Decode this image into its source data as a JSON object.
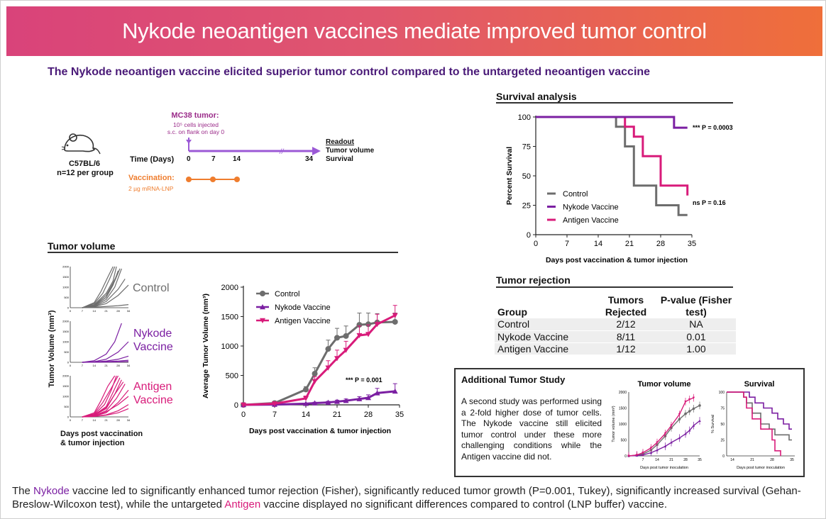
{
  "banner": {
    "title": "Nykode neoantigen vaccines mediate improved tumor control"
  },
  "subtitle": "The Nykode neoantigen vaccine elicited superior tumor control compared to the untargeted neoantigen vaccine",
  "colors": {
    "control": "#6d6d6d",
    "nykode": "#7b1fa2",
    "antigen": "#d81b7a",
    "timeline": "#9b59d6",
    "vaccination": "#ef7d2e"
  },
  "schedule": {
    "mouse_strain": "C57BL/6",
    "group_size": "n=12 per group",
    "tumor_label": "MC38 tumor:",
    "tumor_detail_1": "10⁵ cells injected",
    "tumor_detail_2": "s.c. on flank on day 0",
    "time_label": "Time (Days)",
    "days": [
      "0",
      "7",
      "14",
      "34"
    ],
    "readout_title": "Readout",
    "readout_1": "Tumor volume",
    "readout_2": "Survival",
    "vaccination_label": "Vaccination:",
    "vaccination_detail": "2 µg mRNA-LNP",
    "mouse_icon": "mouse-icon"
  },
  "tumor_volume_section": {
    "heading": "Tumor volume",
    "ylabel_individual": "Tumor Volume (mm³)",
    "xlabel_individual_1": "Days post vaccination",
    "xlabel_individual_2": "& tumor injection",
    "small_y_ticks": [
      "2000",
      "1500",
      "1000",
      "500",
      "0"
    ],
    "small_x_ticks": [
      "0",
      "7",
      "14",
      "21",
      "28",
      "34"
    ],
    "panel_labels": [
      [
        "Control"
      ],
      [
        "Nykode",
        "Vaccine"
      ],
      [
        "Antigen",
        "Vaccine"
      ]
    ]
  },
  "survival_section": {
    "heading": "Survival analysis"
  },
  "rejection": {
    "heading": "Tumor rejection",
    "headers": [
      "Group",
      "Tumors Rejected",
      "P-value (Fisher test)"
    ],
    "header_lines": {
      "group": "Group",
      "tumors": [
        "Tumors",
        "Rejected"
      ],
      "pvalue": [
        "P-value (Fisher",
        "test)"
      ]
    },
    "rows": [
      {
        "group": "Control",
        "rejected": "2/12",
        "p": "NA"
      },
      {
        "group": "Nykode Vaccine",
        "rejected": "8/11",
        "p": "0.01"
      },
      {
        "group": "Antigen Vaccine",
        "rejected": "1/12",
        "p": "1.00"
      }
    ]
  },
  "additional": {
    "title": "Additional Tumor Study",
    "text": "A second study was performed using a 2-fold higher dose of tumor cells. The Nykode vaccine still elicited tumor control under these more challenging conditions while the Antigen vaccine did not."
  },
  "footer": {
    "part1": "The ",
    "nykode": "Nykode",
    "part2": " vaccine led to significantly enhanced tumor rejection (Fisher), significantly reduced tumor growth (P=0.001, Tukey), significantly increased survival (Gehan-Breslow-Wilcoxon test), while the untargeted ",
    "antigen": "Antigen",
    "part3": " vaccine displayed no significant differences compared to control (LNP buffer) vaccine."
  },
  "chart_data": [
    {
      "id": "survival",
      "type": "line",
      "step": true,
      "title": "",
      "xlabel": "Days post vaccination & tumor injection",
      "ylabel": "Percent Survival",
      "xlim": [
        0,
        35
      ],
      "ylim": [
        0,
        100
      ],
      "x_ticks": [
        0,
        7,
        14,
        21,
        28,
        35
      ],
      "y_ticks": [
        0,
        25,
        50,
        75,
        100
      ],
      "legend_position": "bottom-left",
      "series": [
        {
          "name": "Control",
          "x": [
            0,
            18,
            20,
            22,
            27,
            32,
            34
          ],
          "y": [
            100,
            91.7,
            75,
            41.7,
            25,
            16.7,
            16.7
          ]
        },
        {
          "name": "Nykode Vaccine",
          "x": [
            0,
            31,
            34
          ],
          "y": [
            100,
            90.9,
            90.9
          ]
        },
        {
          "name": "Antigen Vaccine",
          "x": [
            0,
            20,
            22,
            24,
            28,
            34
          ],
          "y": [
            100,
            91.7,
            83.3,
            66.7,
            41.7,
            33.3
          ]
        }
      ],
      "annotations": [
        {
          "text": "*** P = 0.0003",
          "x": 35,
          "y": 90.9
        },
        {
          "text": "ns P = 0.16",
          "x": 35,
          "y": 27
        }
      ]
    },
    {
      "id": "average_tumor_volume",
      "type": "line",
      "title": "",
      "xlabel": "Days post vaccination & tumor injection",
      "ylabel": "Average Tumor Volume (mm³)",
      "xlim": [
        0,
        35
      ],
      "ylim": [
        0,
        2000
      ],
      "x_ticks": [
        0,
        7,
        14,
        21,
        28,
        35
      ],
      "y_ticks": [
        0,
        500,
        1000,
        1500,
        2000
      ],
      "legend_position": "top-left",
      "series": [
        {
          "name": "Control",
          "x": [
            0,
            7,
            14,
            16,
            19,
            21,
            23,
            26,
            28,
            30,
            34
          ],
          "y": [
            0,
            30,
            260,
            530,
            950,
            1140,
            1170,
            1360,
            1370,
            1400,
            1410
          ],
          "err": [
            0,
            10,
            50,
            100,
            150,
            160,
            170,
            200,
            190,
            150,
            150
          ]
        },
        {
          "name": "Nykode Vaccine",
          "x": [
            0,
            7,
            14,
            16,
            19,
            21,
            23,
            26,
            28,
            30,
            34
          ],
          "y": [
            0,
            5,
            20,
            30,
            40,
            55,
            70,
            100,
            120,
            200,
            230
          ],
          "err": [
            0,
            5,
            10,
            15,
            20,
            25,
            30,
            40,
            50,
            80,
            130
          ]
        },
        {
          "name": "Antigen Vaccine",
          "x": [
            0,
            7,
            14,
            16,
            19,
            21,
            23,
            26,
            28,
            30,
            34
          ],
          "y": [
            0,
            20,
            110,
            400,
            630,
            790,
            930,
            1180,
            1200,
            1370,
            1520
          ],
          "err": [
            0,
            10,
            40,
            80,
            120,
            140,
            150,
            160,
            160,
            170,
            170
          ]
        }
      ],
      "annotations": [
        {
          "text": "*** P = 0.001",
          "x": 30,
          "y": 420
        }
      ]
    },
    {
      "id": "additional_tumor_volume",
      "type": "line",
      "title": "Tumor volume",
      "xlabel": "Days post tumor inoculation",
      "ylabel": "Tumor volume (mm³)",
      "xlim": [
        0,
        35
      ],
      "ylim": [
        0,
        2000
      ],
      "x_ticks": [
        7,
        14,
        21,
        28,
        35
      ],
      "y_ticks": [
        0,
        500,
        1000,
        1500,
        2000
      ],
      "series": [
        {
          "x": [
            0,
            4,
            7,
            11,
            14,
            18,
            21,
            25,
            28,
            30,
            32,
            35
          ],
          "y": [
            0,
            20,
            60,
            180,
            350,
            620,
            880,
            1150,
            1320,
            1400,
            1480,
            1580
          ]
        },
        {
          "x": [
            0,
            4,
            7,
            11,
            14,
            18,
            21,
            25,
            28,
            30,
            32,
            35
          ],
          "y": [
            0,
            10,
            30,
            100,
            180,
            300,
            420,
            560,
            690,
            800,
            950,
            1100
          ]
        },
        {
          "x": [
            0,
            4,
            7,
            11,
            14,
            18,
            21,
            25,
            28,
            30,
            32
          ],
          "y": [
            0,
            30,
            100,
            250,
            420,
            700,
            950,
            1300,
            1700,
            1770,
            1820
          ]
        }
      ]
    },
    {
      "id": "additional_survival",
      "type": "line",
      "step": true,
      "title": "Survival",
      "xlabel": "Days post tumor inoculation",
      "ylabel": "% Survival",
      "xlim": [
        12,
        36
      ],
      "ylim": [
        0,
        100
      ],
      "x_ticks": [
        14,
        21,
        28,
        35
      ],
      "y_ticks": [
        0,
        25,
        50,
        75,
        100
      ],
      "series": [
        {
          "x": [
            12,
            18,
            19,
            21,
            24,
            27,
            29,
            31,
            34,
            35
          ],
          "y": [
            100,
            92,
            83,
            67,
            50,
            42,
            33,
            33,
            25,
            25
          ]
        },
        {
          "x": [
            12,
            20,
            22,
            25,
            28,
            30,
            32,
            34,
            35
          ],
          "y": [
            100,
            92,
            83,
            75,
            67,
            58,
            50,
            42,
            42
          ]
        },
        {
          "x": [
            12,
            18,
            19,
            21,
            24,
            28,
            29,
            31
          ],
          "y": [
            100,
            92,
            75,
            58,
            42,
            25,
            8,
            0
          ]
        }
      ]
    },
    {
      "id": "individual_control",
      "type": "line",
      "xlim": [
        0,
        34
      ],
      "ylim": [
        0,
        2000
      ],
      "series": [
        {
          "x": [
            7,
            14,
            21,
            25,
            28
          ],
          "y": [
            0,
            100,
            500,
            1100,
            1800
          ]
        },
        {
          "x": [
            7,
            14,
            21,
            25,
            27
          ],
          "y": [
            0,
            150,
            700,
            1300,
            2000
          ]
        },
        {
          "x": [
            7,
            14,
            19,
            23,
            26
          ],
          "y": [
            0,
            200,
            700,
            1400,
            2000
          ]
        },
        {
          "x": [
            7,
            14,
            21,
            26,
            30
          ],
          "y": [
            0,
            80,
            400,
            1000,
            1900
          ]
        },
        {
          "x": [
            7,
            14,
            21,
            25,
            28
          ],
          "y": [
            0,
            120,
            600,
            1200,
            1700
          ]
        },
        {
          "x": [
            7,
            14,
            21,
            28,
            32
          ],
          "y": [
            0,
            60,
            300,
            900,
            1400
          ]
        },
        {
          "x": [
            7,
            14,
            18,
            22,
            25
          ],
          "y": [
            0,
            250,
            800,
            1500,
            2000
          ]
        },
        {
          "x": [
            7,
            14,
            21,
            26,
            29
          ],
          "y": [
            0,
            100,
            500,
            1300,
            1900
          ]
        },
        {
          "x": [
            7,
            14,
            21,
            28,
            34
          ],
          "y": [
            0,
            50,
            200,
            600,
            1100
          ]
        },
        {
          "x": [
            7,
            14,
            21,
            28,
            34
          ],
          "y": [
            0,
            30,
            60,
            100,
            150
          ]
        }
      ]
    },
    {
      "id": "individual_nykode",
      "type": "line",
      "xlim": [
        0,
        34
      ],
      "ylim": [
        0,
        2000
      ],
      "series": [
        {
          "x": [
            7,
            14,
            21,
            26,
            30
          ],
          "y": [
            0,
            80,
            400,
            1000,
            1900
          ]
        },
        {
          "x": [
            7,
            14,
            21,
            28,
            34
          ],
          "y": [
            0,
            30,
            150,
            500,
            1000
          ]
        },
        {
          "x": [
            7,
            14,
            21,
            28,
            34
          ],
          "y": [
            0,
            20,
            60,
            150,
            300
          ]
        },
        {
          "x": [
            7,
            14,
            21,
            28,
            34
          ],
          "y": [
            0,
            10,
            30,
            60,
            100
          ]
        },
        {
          "x": [
            7,
            14,
            21,
            28,
            34
          ],
          "y": [
            0,
            5,
            10,
            20,
            40
          ]
        }
      ]
    },
    {
      "id": "individual_antigen",
      "type": "line",
      "xlim": [
        0,
        34
      ],
      "ylim": [
        0,
        2000
      ],
      "series": [
        {
          "x": [
            7,
            14,
            19,
            24,
            28
          ],
          "y": [
            0,
            150,
            700,
            1400,
            2000
          ]
        },
        {
          "x": [
            7,
            14,
            21,
            25,
            29
          ],
          "y": [
            0,
            100,
            500,
            1200,
            1900
          ]
        },
        {
          "x": [
            7,
            14,
            21,
            26,
            30
          ],
          "y": [
            0,
            80,
            400,
            1100,
            1800
          ]
        },
        {
          "x": [
            7,
            14,
            18,
            22,
            26
          ],
          "y": [
            0,
            200,
            800,
            1500,
            2000
          ]
        },
        {
          "x": [
            7,
            14,
            21,
            27,
            32
          ],
          "y": [
            0,
            60,
            300,
            900,
            1600
          ]
        },
        {
          "x": [
            7,
            14,
            21,
            28,
            34
          ],
          "y": [
            0,
            40,
            200,
            700,
            1300
          ]
        },
        {
          "x": [
            7,
            14,
            20,
            24,
            27
          ],
          "y": [
            0,
            120,
            600,
            1300,
            2000
          ]
        },
        {
          "x": [
            7,
            14,
            21,
            28,
            34
          ],
          "y": [
            0,
            50,
            250,
            600,
            1000
          ]
        },
        {
          "x": [
            7,
            14,
            21,
            28,
            34
          ],
          "y": [
            0,
            30,
            100,
            300,
            600
          ]
        },
        {
          "x": [
            7,
            14,
            21,
            28,
            34
          ],
          "y": [
            0,
            20,
            80,
            200,
            400
          ]
        },
        {
          "x": [
            7,
            14,
            21,
            26,
            31
          ],
          "y": [
            0,
            90,
            450,
            1100,
            1700
          ]
        }
      ]
    }
  ]
}
